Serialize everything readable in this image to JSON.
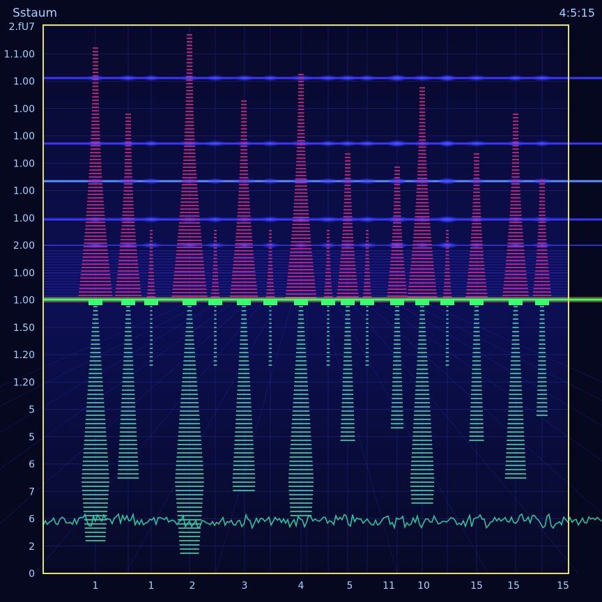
{
  "header": {
    "title": "Sstaum",
    "time": "4:5:15"
  },
  "chart_data": {
    "type": "spectrogram",
    "title": "Sstaum",
    "y_ticks": [
      "2.fU7",
      "1.1.00",
      "1.00",
      "1.00",
      "1.00",
      "1.00",
      "1.00",
      "1.00",
      "2.00",
      "1.00",
      "1.00",
      "1.50",
      "1.20",
      "1.20",
      "5",
      "5",
      "6",
      "7",
      "6",
      "2",
      "0"
    ],
    "x_ticks": [
      "1",
      "1",
      "2",
      "3",
      "4",
      "5",
      "11",
      "10",
      "15",
      "15",
      "15"
    ],
    "peaks_x": [
      1,
      1,
      2,
      3,
      4,
      5,
      11,
      10,
      15,
      15,
      15
    ],
    "peak_strength": [
      0.95,
      0.7,
      1.0,
      0.75,
      0.85,
      0.55,
      0.5,
      0.8,
      0.55,
      0.7,
      0.45
    ],
    "baseline_level": "1.00",
    "horizontal_bands": [
      "1.00",
      "1.00",
      "1.00",
      "1.00",
      "1.00"
    ],
    "grid": true,
    "colors": {
      "background": "#06081f",
      "frame": "#e4e36a",
      "band": "#3b36ff",
      "baseline": "#39ff6a",
      "upper_stripes": "#d0287e",
      "lower_stripes": "#2fd7a8",
      "noise": "#2fd7a8",
      "text": "#9fd4ff"
    }
  }
}
